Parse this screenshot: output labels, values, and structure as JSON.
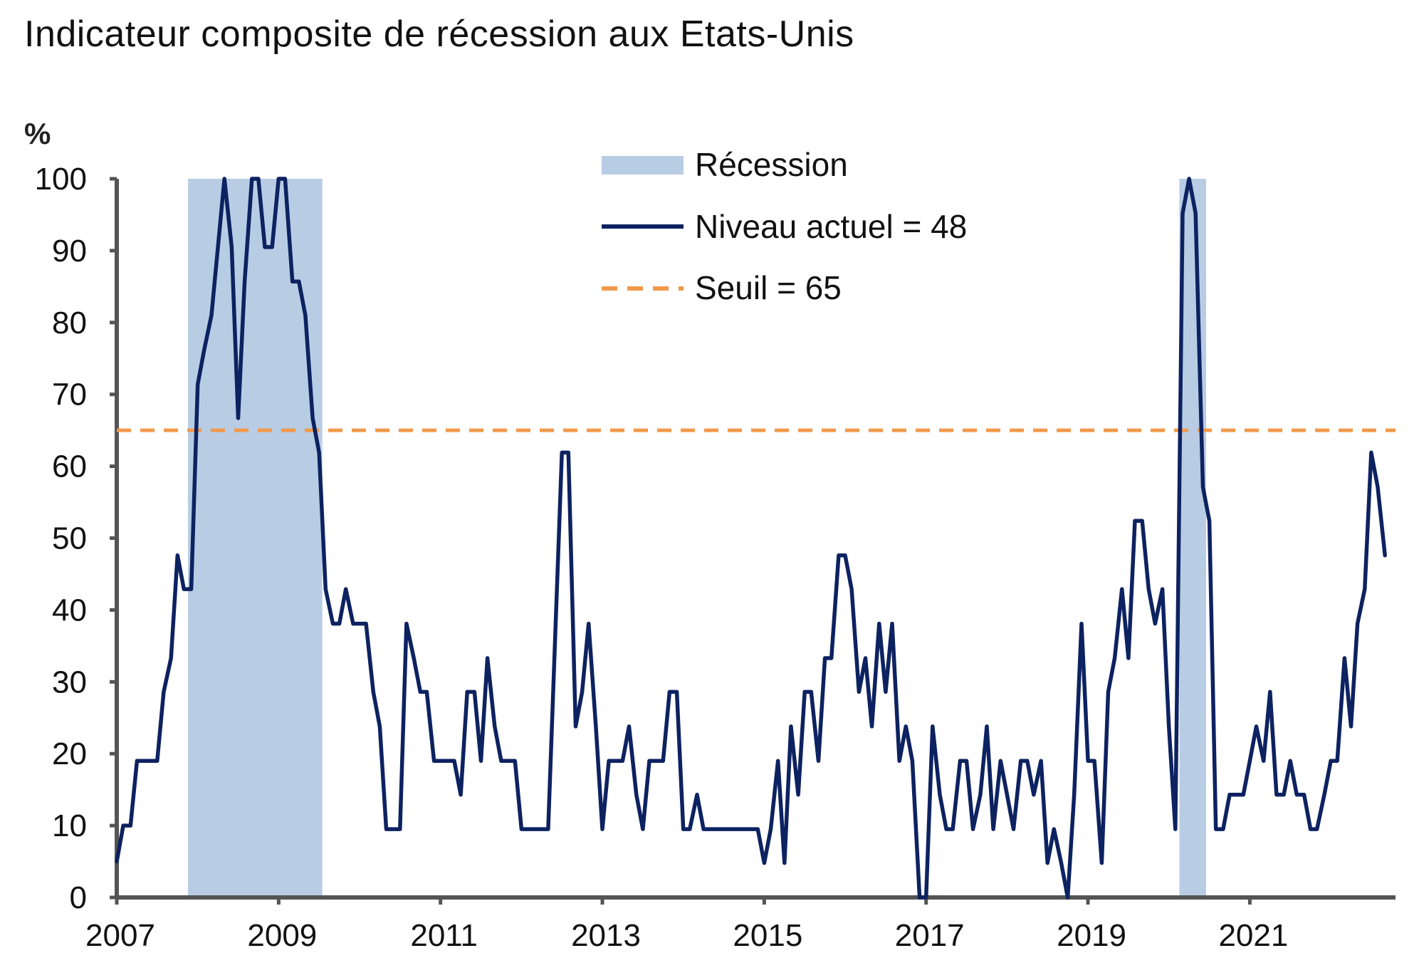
{
  "chart_data": {
    "type": "line",
    "title": "Indicateur composite de récession aux Etats-Unis",
    "ylabel": "%",
    "xlabel": "",
    "ylim": [
      0,
      100
    ],
    "xlim": [
      2007.0,
      2022.8
    ],
    "yticks": [
      0,
      10,
      20,
      30,
      40,
      50,
      60,
      70,
      80,
      90,
      100
    ],
    "xticks": [
      2007,
      2009,
      2011,
      2013,
      2015,
      2017,
      2019,
      2021
    ],
    "grid": false,
    "legend_position": "top-center",
    "legend": [
      {
        "key": "recession",
        "label": "Récession",
        "style": "band"
      },
      {
        "key": "level",
        "label": "Niveau actuel = 48",
        "style": "line"
      },
      {
        "key": "threshold",
        "label": "Seuil = 65",
        "style": "dashed"
      }
    ],
    "recession_periods": [
      {
        "start": 2007.88,
        "end": 2009.54
      },
      {
        "start": 2020.13,
        "end": 2020.46
      }
    ],
    "threshold": 65,
    "current_level": 48,
    "series": [
      {
        "name": "Niveau actuel = 48",
        "points": [
          [
            2007.0,
            5
          ],
          [
            2007.08,
            10
          ],
          [
            2007.17,
            10
          ],
          [
            2007.25,
            19
          ],
          [
            2007.33,
            19
          ],
          [
            2007.42,
            19
          ],
          [
            2007.5,
            19
          ],
          [
            2007.58,
            28.6
          ],
          [
            2007.67,
            33.3
          ],
          [
            2007.75,
            47.6
          ],
          [
            2007.83,
            42.9
          ],
          [
            2007.92,
            42.9
          ],
          [
            2008.0,
            71.4
          ],
          [
            2008.08,
            76.2
          ],
          [
            2008.17,
            81
          ],
          [
            2008.25,
            90.5
          ],
          [
            2008.33,
            100
          ],
          [
            2008.42,
            90.5
          ],
          [
            2008.5,
            66.7
          ],
          [
            2008.58,
            85.7
          ],
          [
            2008.67,
            100
          ],
          [
            2008.75,
            100
          ],
          [
            2008.83,
            90.5
          ],
          [
            2008.92,
            90.5
          ],
          [
            2009.0,
            100
          ],
          [
            2009.08,
            100
          ],
          [
            2009.17,
            85.7
          ],
          [
            2009.25,
            85.7
          ],
          [
            2009.33,
            81
          ],
          [
            2009.42,
            66.7
          ],
          [
            2009.5,
            61.9
          ],
          [
            2009.58,
            42.9
          ],
          [
            2009.67,
            38.1
          ],
          [
            2009.75,
            38.1
          ],
          [
            2009.83,
            42.9
          ],
          [
            2009.92,
            38.1
          ],
          [
            2010.0,
            38.1
          ],
          [
            2010.08,
            38.1
          ],
          [
            2010.17,
            28.6
          ],
          [
            2010.25,
            23.8
          ],
          [
            2010.33,
            9.5
          ],
          [
            2010.42,
            9.5
          ],
          [
            2010.5,
            9.5
          ],
          [
            2010.58,
            38.1
          ],
          [
            2010.67,
            33.3
          ],
          [
            2010.75,
            28.6
          ],
          [
            2010.83,
            28.6
          ],
          [
            2010.92,
            19
          ],
          [
            2011.0,
            19
          ],
          [
            2011.08,
            19
          ],
          [
            2011.17,
            19
          ],
          [
            2011.25,
            14.3
          ],
          [
            2011.33,
            28.6
          ],
          [
            2011.42,
            28.6
          ],
          [
            2011.5,
            19
          ],
          [
            2011.58,
            33.3
          ],
          [
            2011.67,
            23.8
          ],
          [
            2011.75,
            19
          ],
          [
            2011.83,
            19
          ],
          [
            2011.92,
            19
          ],
          [
            2012.0,
            9.5
          ],
          [
            2012.08,
            9.5
          ],
          [
            2012.17,
            9.5
          ],
          [
            2012.25,
            9.5
          ],
          [
            2012.33,
            9.5
          ],
          [
            2012.5,
            61.9
          ],
          [
            2012.58,
            61.9
          ],
          [
            2012.67,
            23.8
          ],
          [
            2012.75,
            28.6
          ],
          [
            2012.83,
            38.1
          ],
          [
            2012.92,
            23.8
          ],
          [
            2013.0,
            9.5
          ],
          [
            2013.08,
            19
          ],
          [
            2013.17,
            19
          ],
          [
            2013.25,
            19
          ],
          [
            2013.33,
            23.8
          ],
          [
            2013.42,
            14.3
          ],
          [
            2013.5,
            9.5
          ],
          [
            2013.58,
            19
          ],
          [
            2013.67,
            19
          ],
          [
            2013.75,
            19
          ],
          [
            2013.83,
            28.6
          ],
          [
            2013.92,
            28.6
          ],
          [
            2014.0,
            9.5
          ],
          [
            2014.08,
            9.5
          ],
          [
            2014.17,
            14.3
          ],
          [
            2014.25,
            9.5
          ],
          [
            2014.33,
            9.5
          ],
          [
            2014.42,
            9.5
          ],
          [
            2014.5,
            9.5
          ],
          [
            2014.58,
            9.5
          ],
          [
            2014.67,
            9.5
          ],
          [
            2014.75,
            9.5
          ],
          [
            2014.83,
            9.5
          ],
          [
            2014.92,
            9.5
          ],
          [
            2015.0,
            4.8
          ],
          [
            2015.08,
            9.5
          ],
          [
            2015.17,
            19
          ],
          [
            2015.25,
            4.8
          ],
          [
            2015.33,
            23.8
          ],
          [
            2015.42,
            14.3
          ],
          [
            2015.5,
            28.6
          ],
          [
            2015.58,
            28.6
          ],
          [
            2015.67,
            19
          ],
          [
            2015.75,
            33.3
          ],
          [
            2015.83,
            33.3
          ],
          [
            2015.92,
            47.6
          ],
          [
            2016.0,
            47.6
          ],
          [
            2016.08,
            42.9
          ],
          [
            2016.17,
            28.6
          ],
          [
            2016.25,
            33.3
          ],
          [
            2016.33,
            23.8
          ],
          [
            2016.42,
            38.1
          ],
          [
            2016.5,
            28.6
          ],
          [
            2016.58,
            38.1
          ],
          [
            2016.67,
            19
          ],
          [
            2016.75,
            23.8
          ],
          [
            2016.83,
            19
          ],
          [
            2016.92,
            0
          ],
          [
            2017.0,
            0
          ],
          [
            2017.08,
            23.8
          ],
          [
            2017.17,
            14.3
          ],
          [
            2017.25,
            9.5
          ],
          [
            2017.33,
            9.5
          ],
          [
            2017.42,
            19
          ],
          [
            2017.5,
            19
          ],
          [
            2017.58,
            9.5
          ],
          [
            2017.67,
            14.3
          ],
          [
            2017.75,
            23.8
          ],
          [
            2017.83,
            9.5
          ],
          [
            2017.92,
            19
          ],
          [
            2018.0,
            14.3
          ],
          [
            2018.08,
            9.5
          ],
          [
            2018.17,
            19
          ],
          [
            2018.25,
            19
          ],
          [
            2018.33,
            14.3
          ],
          [
            2018.42,
            19
          ],
          [
            2018.5,
            4.8
          ],
          [
            2018.58,
            9.5
          ],
          [
            2018.67,
            4.8
          ],
          [
            2018.75,
            0
          ],
          [
            2018.83,
            14.3
          ],
          [
            2018.92,
            38.1
          ],
          [
            2019.0,
            19
          ],
          [
            2019.08,
            19
          ],
          [
            2019.17,
            4.8
          ],
          [
            2019.25,
            28.6
          ],
          [
            2019.33,
            33.3
          ],
          [
            2019.42,
            42.9
          ],
          [
            2019.5,
            33.3
          ],
          [
            2019.58,
            52.4
          ],
          [
            2019.67,
            52.4
          ],
          [
            2019.75,
            42.9
          ],
          [
            2019.83,
            38.1
          ],
          [
            2019.92,
            42.9
          ],
          [
            2020.0,
            23.8
          ],
          [
            2020.08,
            9.5
          ],
          [
            2020.17,
            95.2
          ],
          [
            2020.25,
            100
          ],
          [
            2020.33,
            95.2
          ],
          [
            2020.42,
            57.1
          ],
          [
            2020.5,
            52.4
          ],
          [
            2020.58,
            9.5
          ],
          [
            2020.67,
            9.5
          ],
          [
            2020.75,
            14.3
          ],
          [
            2020.83,
            14.3
          ],
          [
            2020.92,
            14.3
          ],
          [
            2021.0,
            19
          ],
          [
            2021.08,
            23.8
          ],
          [
            2021.17,
            19
          ],
          [
            2021.25,
            28.6
          ],
          [
            2021.33,
            14.3
          ],
          [
            2021.42,
            14.3
          ],
          [
            2021.5,
            19
          ],
          [
            2021.58,
            14.3
          ],
          [
            2021.67,
            14.3
          ],
          [
            2021.75,
            9.5
          ],
          [
            2021.83,
            9.5
          ],
          [
            2021.92,
            14.3
          ],
          [
            2022.0,
            19
          ],
          [
            2022.08,
            19
          ],
          [
            2022.17,
            33.3
          ],
          [
            2022.25,
            23.8
          ],
          [
            2022.33,
            38.1
          ],
          [
            2022.42,
            42.9
          ],
          [
            2022.5,
            61.9
          ],
          [
            2022.58,
            57.1
          ],
          [
            2022.67,
            47.6
          ]
        ]
      }
    ]
  },
  "colors": {
    "line": "#0d2260",
    "threshold": "#f2994a",
    "recession": "#b8cce4",
    "axis": "#555555",
    "text": "#111111"
  }
}
